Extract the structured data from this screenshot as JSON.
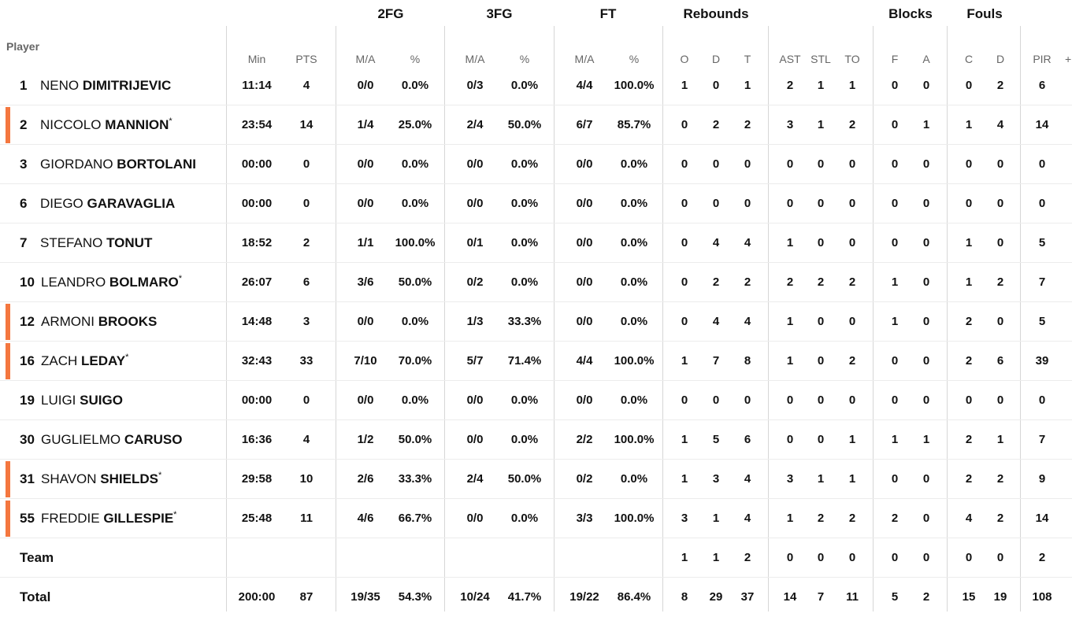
{
  "group_headers": {
    "fg2": "2FG",
    "fg3": "3FG",
    "ft": "FT",
    "rebounds": "Rebounds",
    "blocks": "Blocks",
    "fouls": "Fouls"
  },
  "column_headers": {
    "player": "Player",
    "min": "Min",
    "pts": "PTS",
    "fg2_ma": "M/A",
    "fg2_pct": "%",
    "fg3_ma": "M/A",
    "fg3_pct": "%",
    "ft_ma": "M/A",
    "ft_pct": "%",
    "reb_o": "O",
    "reb_d": "D",
    "reb_t": "T",
    "ast": "AST",
    "stl": "STL",
    "to": "TO",
    "blk_f": "F",
    "blk_a": "A",
    "foul_c": "C",
    "foul_d": "D",
    "pir": "PIR",
    "more": "+"
  },
  "accent_color": "#f4773f",
  "players": [
    {
      "num": "1",
      "first": "NENO",
      "last": "DIMITRIJEVIC",
      "starter": "",
      "highlight": false,
      "stats": [
        "11:14",
        "4",
        "0/0",
        "0.0%",
        "0/3",
        "0.0%",
        "4/4",
        "100.0%",
        "1",
        "0",
        "1",
        "2",
        "1",
        "1",
        "0",
        "0",
        "0",
        "2",
        "6"
      ]
    },
    {
      "num": "2",
      "first": "NICCOLO",
      "last": "MANNION",
      "starter": "*",
      "highlight": true,
      "stats": [
        "23:54",
        "14",
        "1/4",
        "25.0%",
        "2/4",
        "50.0%",
        "6/7",
        "85.7%",
        "0",
        "2",
        "2",
        "3",
        "1",
        "2",
        "0",
        "1",
        "1",
        "4",
        "14"
      ]
    },
    {
      "num": "3",
      "first": "GIORDANO",
      "last": "BORTOLANI",
      "starter": "",
      "highlight": false,
      "stats": [
        "00:00",
        "0",
        "0/0",
        "0.0%",
        "0/0",
        "0.0%",
        "0/0",
        "0.0%",
        "0",
        "0",
        "0",
        "0",
        "0",
        "0",
        "0",
        "0",
        "0",
        "0",
        "0"
      ]
    },
    {
      "num": "6",
      "first": "DIEGO",
      "last": "GARAVAGLIA",
      "starter": "",
      "highlight": false,
      "stats": [
        "00:00",
        "0",
        "0/0",
        "0.0%",
        "0/0",
        "0.0%",
        "0/0",
        "0.0%",
        "0",
        "0",
        "0",
        "0",
        "0",
        "0",
        "0",
        "0",
        "0",
        "0",
        "0"
      ]
    },
    {
      "num": "7",
      "first": "STEFANO",
      "last": "TONUT",
      "starter": "",
      "highlight": false,
      "stats": [
        "18:52",
        "2",
        "1/1",
        "100.0%",
        "0/1",
        "0.0%",
        "0/0",
        "0.0%",
        "0",
        "4",
        "4",
        "1",
        "0",
        "0",
        "0",
        "0",
        "1",
        "0",
        "5"
      ]
    },
    {
      "num": "10",
      "first": "LEANDRO",
      "last": "BOLMARO",
      "starter": "*",
      "highlight": false,
      "stats": [
        "26:07",
        "6",
        "3/6",
        "50.0%",
        "0/2",
        "0.0%",
        "0/0",
        "0.0%",
        "0",
        "2",
        "2",
        "2",
        "2",
        "2",
        "1",
        "0",
        "1",
        "2",
        "7"
      ]
    },
    {
      "num": "12",
      "first": "ARMONI",
      "last": "BROOKS",
      "starter": "",
      "highlight": true,
      "stats": [
        "14:48",
        "3",
        "0/0",
        "0.0%",
        "1/3",
        "33.3%",
        "0/0",
        "0.0%",
        "0",
        "4",
        "4",
        "1",
        "0",
        "0",
        "1",
        "0",
        "2",
        "0",
        "5"
      ]
    },
    {
      "num": "16",
      "first": "ZACH",
      "last": "LEDAY",
      "starter": "*",
      "highlight": true,
      "stats": [
        "32:43",
        "33",
        "7/10",
        "70.0%",
        "5/7",
        "71.4%",
        "4/4",
        "100.0%",
        "1",
        "7",
        "8",
        "1",
        "0",
        "2",
        "0",
        "0",
        "2",
        "6",
        "39"
      ]
    },
    {
      "num": "19",
      "first": "LUIGI",
      "last": "SUIGO",
      "starter": "",
      "highlight": false,
      "stats": [
        "00:00",
        "0",
        "0/0",
        "0.0%",
        "0/0",
        "0.0%",
        "0/0",
        "0.0%",
        "0",
        "0",
        "0",
        "0",
        "0",
        "0",
        "0",
        "0",
        "0",
        "0",
        "0"
      ]
    },
    {
      "num": "30",
      "first": "GUGLIELMO",
      "last": "CARUSO",
      "starter": "",
      "highlight": false,
      "stats": [
        "16:36",
        "4",
        "1/2",
        "50.0%",
        "0/0",
        "0.0%",
        "2/2",
        "100.0%",
        "1",
        "5",
        "6",
        "0",
        "0",
        "1",
        "1",
        "1",
        "2",
        "1",
        "7"
      ]
    },
    {
      "num": "31",
      "first": "SHAVON",
      "last": "SHIELDS",
      "starter": "*",
      "highlight": true,
      "stats": [
        "29:58",
        "10",
        "2/6",
        "33.3%",
        "2/4",
        "50.0%",
        "0/2",
        "0.0%",
        "1",
        "3",
        "4",
        "3",
        "1",
        "1",
        "0",
        "0",
        "2",
        "2",
        "9"
      ]
    },
    {
      "num": "55",
      "first": "FREDDIE",
      "last": "GILLESPIE",
      "starter": "*",
      "highlight": true,
      "stats": [
        "25:48",
        "11",
        "4/6",
        "66.7%",
        "0/0",
        "0.0%",
        "3/3",
        "100.0%",
        "3",
        "1",
        "4",
        "1",
        "2",
        "2",
        "2",
        "0",
        "4",
        "2",
        "14"
      ]
    }
  ],
  "team": {
    "label": "Team",
    "stats": [
      "",
      "",
      "",
      "",
      "",
      "",
      "",
      "",
      "1",
      "1",
      "2",
      "0",
      "0",
      "0",
      "0",
      "0",
      "0",
      "0",
      "2"
    ]
  },
  "total": {
    "label": "Total",
    "stats": [
      "200:00",
      "87",
      "19/35",
      "54.3%",
      "10/24",
      "41.7%",
      "19/22",
      "86.4%",
      "8",
      "29",
      "37",
      "14",
      "7",
      "11",
      "5",
      "2",
      "15",
      "19",
      "108"
    ]
  }
}
